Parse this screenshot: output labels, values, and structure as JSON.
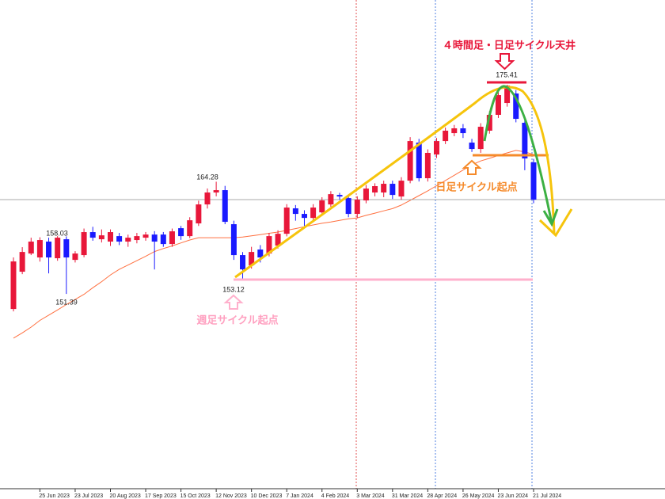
{
  "chart_data": {
    "type": "candlestick",
    "categories": [
      null,
      null,
      null,
      "25 Jun 2023",
      null,
      null,
      null,
      "23 Jul 2023",
      null,
      null,
      null,
      "20 Aug 2023",
      null,
      null,
      null,
      "17 Sep 2023",
      null,
      null,
      null,
      "15 Oct 2023",
      null,
      null,
      null,
      "12 Nov 2023",
      null,
      null,
      null,
      "10 Dec 2023",
      null,
      null,
      null,
      "7 Jan 2024",
      null,
      null,
      null,
      "4 Feb 2024",
      null,
      null,
      null,
      "3 Mar 2024",
      null,
      null,
      null,
      "31 Mar 2024",
      null,
      null,
      null,
      "28 Apr 2024",
      null,
      null,
      null,
      "26 May 2024",
      null,
      null,
      null,
      "23 Jun 2024",
      null,
      null,
      null,
      "21 Jul 2024"
    ],
    "open": [
      149.66,
      153.94,
      156.03,
      155.58,
      157.4,
      155.49,
      157.67,
      155.3,
      155.85,
      158.49,
      157.67,
      157.4,
      158.03,
      157.4,
      157.58,
      157.85,
      158.21,
      158.21,
      157.12,
      158.94,
      158.03,
      159.49,
      161.67,
      163.04,
      163.31,
      159.4,
      155.85,
      154.67,
      156.49,
      156.03,
      156.94,
      158.3,
      161.22,
      160.58,
      160.12,
      160.76,
      161.67,
      162.76,
      162.4,
      160.58,
      162.13,
      163.04,
      163.04,
      164.04,
      162.58,
      164.4,
      168.77,
      164.68,
      167.4,
      168.95,
      169.86,
      170.41,
      168.77,
      168.04,
      170.14,
      171.96,
      173.32,
      174.41,
      171.05,
      166.5
    ],
    "high": [
      155.58,
      156.76,
      157.85,
      157.9,
      157.85,
      158.03,
      158.0,
      156.3,
      158.9,
      159.1,
      158.8,
      158.8,
      158.4,
      158.2,
      158.4,
      158.5,
      158.6,
      158.5,
      158.9,
      159.2,
      160.2,
      162.1,
      163.5,
      164.28,
      163.8,
      159.8,
      156.2,
      156.8,
      157.0,
      158.4,
      158.7,
      161.7,
      161.6,
      161.0,
      161.7,
      162.5,
      163.2,
      163.0,
      162.8,
      162.6,
      163.9,
      164.1,
      164.4,
      164.4,
      164.8,
      169.4,
      169.2,
      168.0,
      169.3,
      170.5,
      170.8,
      170.9,
      169.2,
      171.0,
      172.4,
      174.7,
      175.41,
      174.8,
      171.4,
      166.9
    ],
    "low": [
      149.39,
      153.66,
      155.85,
      155.1,
      153.75,
      155.2,
      151.39,
      155.0,
      155.6,
      157.5,
      157.3,
      156.9,
      157.0,
      156.8,
      157.2,
      157.5,
      154.2,
      156.8,
      156.8,
      157.6,
      157.8,
      159.2,
      161.2,
      162.6,
      159.4,
      155.3,
      153.12,
      154.3,
      155.0,
      155.7,
      156.6,
      158.0,
      159.8,
      159.2,
      159.8,
      160.4,
      161.4,
      162.2,
      160.2,
      160.1,
      161.8,
      162.6,
      162.5,
      162.3,
      162.2,
      164.1,
      164.3,
      164.3,
      167.0,
      168.6,
      169.5,
      169.3,
      167.7,
      167.6,
      169.8,
      171.6,
      172.9,
      171.1,
      165.6,
      161.8
    ],
    "close": [
      155.12,
      156.21,
      157.4,
      157.58,
      155.58,
      157.85,
      155.58,
      156.03,
      158.49,
      157.85,
      158.12,
      158.49,
      157.4,
      157.85,
      158.03,
      158.21,
      157.4,
      157.12,
      158.58,
      158.03,
      159.85,
      161.67,
      163.04,
      163.31,
      159.67,
      155.85,
      154.21,
      156.21,
      155.58,
      158.03,
      158.3,
      161.31,
      160.58,
      160.12,
      161.31,
      162.13,
      162.85,
      162.58,
      160.58,
      162.22,
      163.49,
      163.77,
      164.04,
      162.76,
      164.4,
      168.95,
      164.68,
      167.59,
      168.95,
      170.14,
      170.41,
      169.86,
      168.04,
      170.59,
      171.96,
      174.23,
      175.32,
      171.5,
      166.95,
      162.22
    ],
    "up_color": "#e8173a",
    "down_color": "#1a1aff",
    "ma": {
      "color": "#ff7040",
      "values": [
        146.31,
        146.91,
        147.58,
        148.35,
        148.95,
        149.55,
        150.17,
        150.75,
        151.34,
        152.1,
        152.8,
        153.57,
        154.21,
        154.71,
        155.21,
        155.71,
        156.26,
        156.6,
        156.9,
        157.25,
        157.58,
        157.85,
        157.85,
        157.85,
        157.85,
        157.85,
        157.92,
        158.07,
        158.2,
        158.36,
        158.49,
        158.69,
        158.89,
        159.11,
        159.31,
        159.5,
        159.66,
        159.84,
        160.02,
        160.12,
        160.41,
        160.67,
        160.93,
        161.19,
        161.6,
        162.13,
        162.68,
        163.23,
        163.82,
        164.42,
        165.02,
        165.62,
        166.22,
        166.66,
        166.96,
        167.29,
        167.59,
        167.87,
        167.71,
        167.4
      ]
    },
    "ylim": [
      129.2,
      185.15
    ],
    "annotations": [
      "４時間足・日足サイクル天井",
      "日足サイクル起点",
      "週足サイクル起点"
    ]
  }
}
